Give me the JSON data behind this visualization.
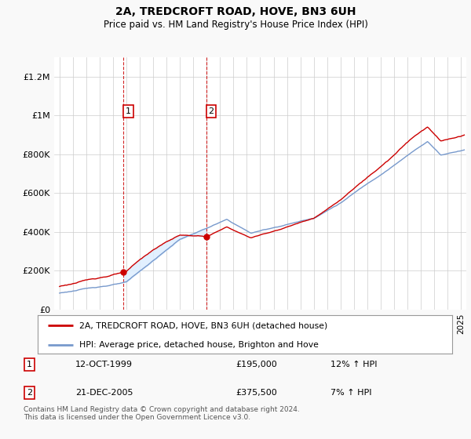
{
  "title": "2A, TREDCROFT ROAD, HOVE, BN3 6UH",
  "subtitle": "Price paid vs. HM Land Registry's House Price Index (HPI)",
  "ylabel_ticks": [
    "£0",
    "£200K",
    "£400K",
    "£600K",
    "£800K",
    "£1M",
    "£1.2M"
  ],
  "ylim": [
    0,
    1300000
  ],
  "yticks": [
    0,
    200000,
    400000,
    600000,
    800000,
    1000000,
    1200000
  ],
  "red_color": "#cc0000",
  "blue_color": "#7799cc",
  "blue_fill_color": "#ddeeff",
  "marker1_x": 1999.79,
  "marker1_y": 195000,
  "marker2_x": 2005.97,
  "marker2_y": 375500,
  "sale1_date": "12-OCT-1999",
  "sale1_price": "£195,000",
  "sale1_hpi": "12% ↑ HPI",
  "sale2_date": "21-DEC-2005",
  "sale2_price": "£375,500",
  "sale2_hpi": "7% ↑ HPI",
  "legend_line1": "2A, TREDCROFT ROAD, HOVE, BN3 6UH (detached house)",
  "legend_line2": "HPI: Average price, detached house, Brighton and Hove",
  "footnote": "Contains HM Land Registry data © Crown copyright and database right 2024.\nThis data is licensed under the Open Government Licence v3.0.",
  "background_color": "#f9f9f9",
  "plot_bg_color": "#ffffff",
  "xlim_start": 1994.6,
  "xlim_end": 2025.4
}
